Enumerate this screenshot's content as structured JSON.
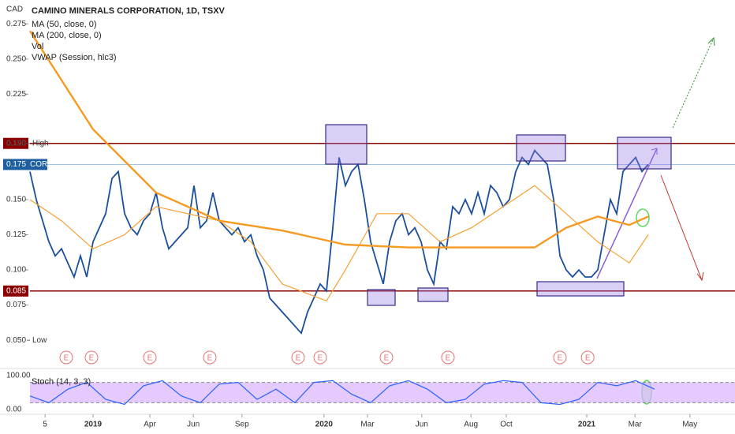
{
  "chart_data": {
    "type": "line",
    "title": "CAMINO MINERALS CORPORATION, 1D, TSXV",
    "currency": "CAD",
    "indicators": [
      "MA (50, close, 0)",
      "MA (200, close, 0)",
      "Vol",
      "VWAP (Session, hlc3)"
    ],
    "xlim": [
      0,
      111.75
    ],
    "xticks": [
      {
        "value": 2.4,
        "label": "5"
      },
      {
        "value": 10,
        "label": "2019"
      },
      {
        "value": 19,
        "label": "Apr"
      },
      {
        "value": 25.9,
        "label": "Jun"
      },
      {
        "value": 33.6,
        "label": "Sep"
      },
      {
        "value": 46.6,
        "label": "2020"
      },
      {
        "value": 53.5,
        "label": "Mar"
      },
      {
        "value": 62.1,
        "label": "Jun"
      },
      {
        "value": 69.9,
        "label": "Aug"
      },
      {
        "value": 75.5,
        "label": "Oct"
      },
      {
        "value": 88.25,
        "label": "2021"
      },
      {
        "value": 95.9,
        "label": "Mar"
      },
      {
        "value": 104.6,
        "label": "May"
      }
    ],
    "ylim": [
      0.031,
      0.292
    ],
    "yticks": [
      0.275,
      {
        "value": 0.25,
        "label": "0.250"
      },
      0.225,
      {
        "value": 0.15,
        "label": "0.150"
      },
      0.125,
      {
        "value": 0.1,
        "label": "0.100"
      },
      0.075
    ],
    "levels": [
      {
        "value": 0.19,
        "label": "0.190",
        "color": "#8b0000"
      },
      {
        "value": 0.175,
        "label": "0.175",
        "tag": "COR",
        "color": "#1e5fa0"
      },
      {
        "value": 0.085,
        "label": "0.085",
        "color": "#8b0000"
      }
    ],
    "high": {
      "value": 0.19,
      "label": "0.190",
      "tag": "High"
    },
    "low": {
      "value": 0.05,
      "label": "0.050",
      "tag": "Low"
    },
    "series": [
      {
        "name": "COR",
        "color": "#1b4f9c",
        "x": [
          0,
          1,
          2,
          3,
          4,
          5,
          6,
          7,
          8,
          9,
          10,
          11,
          12,
          13,
          14,
          15,
          16,
          17,
          18,
          19,
          20,
          21,
          22,
          23,
          24,
          25,
          26,
          27,
          28,
          29,
          30,
          31,
          32,
          33,
          34,
          35,
          36,
          37,
          38,
          39,
          40,
          41,
          42,
          43,
          44,
          45,
          46,
          47,
          48,
          49,
          50,
          51,
          52,
          53,
          54,
          55,
          56,
          57,
          58,
          59,
          60,
          61,
          62,
          63,
          64,
          65,
          66,
          67,
          68,
          69,
          70,
          71,
          72,
          73,
          74,
          75,
          76,
          77,
          78,
          79,
          80,
          81,
          82,
          83,
          84,
          85,
          86,
          87,
          88,
          89,
          90,
          91,
          92,
          93,
          94,
          95,
          96,
          97,
          98
        ],
        "values": [
          0.17,
          0.15,
          0.135,
          0.12,
          0.11,
          0.115,
          0.105,
          0.095,
          0.11,
          0.095,
          0.12,
          0.13,
          0.14,
          0.165,
          0.17,
          0.14,
          0.13,
          0.125,
          0.135,
          0.14,
          0.155,
          0.13,
          0.115,
          0.12,
          0.125,
          0.13,
          0.16,
          0.13,
          0.135,
          0.155,
          0.135,
          0.13,
          0.125,
          0.13,
          0.12,
          0.125,
          0.11,
          0.1,
          0.08,
          0.075,
          0.07,
          0.065,
          0.06,
          0.055,
          0.07,
          0.08,
          0.09,
          0.085,
          0.13,
          0.18,
          0.16,
          0.17,
          0.175,
          0.15,
          0.12,
          0.105,
          0.09,
          0.12,
          0.135,
          0.14,
          0.125,
          0.13,
          0.12,
          0.1,
          0.09,
          0.12,
          0.115,
          0.145,
          0.14,
          0.15,
          0.14,
          0.155,
          0.14,
          0.16,
          0.155,
          0.145,
          0.15,
          0.17,
          0.18,
          0.175,
          0.185,
          0.18,
          0.175,
          0.15,
          0.11,
          0.1,
          0.095,
          0.1,
          0.095,
          0.095,
          0.1,
          0.125,
          0.15,
          0.14,
          0.17,
          0.175,
          0.18,
          0.17,
          0.175
        ]
      },
      {
        "name": "MA (50, close, 0)",
        "color": "#f5a033",
        "x": [
          0,
          5,
          10,
          15,
          20,
          25,
          30,
          35,
          40,
          47,
          50,
          55,
          60,
          65,
          70,
          75,
          80,
          85,
          90,
          95,
          98
        ],
        "values": [
          0.15,
          0.135,
          0.115,
          0.125,
          0.145,
          0.14,
          0.135,
          0.12,
          0.09,
          0.078,
          0.1,
          0.14,
          0.14,
          0.12,
          0.13,
          0.145,
          0.16,
          0.14,
          0.12,
          0.105,
          0.125
        ]
      },
      {
        "name": "MA (200, close, 0)",
        "color": "#f59a23",
        "x": [
          0,
          10,
          20,
          30,
          40,
          50,
          60,
          70,
          80,
          85,
          90,
          95,
          98
        ],
        "values": [
          0.27,
          0.2,
          0.155,
          0.135,
          0.128,
          0.118,
          0.116,
          0.116,
          0.116,
          0.13,
          0.138,
          0.132,
          0.138
        ]
      }
    ],
    "earnings": {
      "label": "E",
      "x": [
        5.75,
        9.75,
        19,
        28.5,
        42.5,
        46,
        56.5,
        66.25,
        84,
        88.4
      ]
    },
    "stoch": {
      "label": "Stoch (14, 3, 3)",
      "color": "#2962ff",
      "band_color": "#d9b3ff",
      "ylim": [
        0,
        100
      ],
      "yticks": [
        {
          "value": 100,
          "label": "100.00"
        },
        {
          "value": 0,
          "label": "0.00"
        }
      ],
      "band": [
        20,
        80
      ],
      "x": [
        0,
        3,
        6,
        9,
        12,
        15,
        18,
        21,
        24,
        27,
        30,
        33,
        36,
        39,
        42,
        45,
        48,
        51,
        54,
        57,
        60,
        63,
        66,
        69,
        72,
        75,
        78,
        81,
        84,
        87,
        90,
        93,
        96,
        99
      ],
      "values": [
        40,
        20,
        60,
        80,
        30,
        15,
        70,
        85,
        40,
        20,
        75,
        80,
        30,
        60,
        20,
        80,
        85,
        45,
        20,
        70,
        85,
        60,
        20,
        30,
        75,
        85,
        80,
        20,
        15,
        30,
        80,
        70,
        85,
        60
      ]
    }
  }
}
